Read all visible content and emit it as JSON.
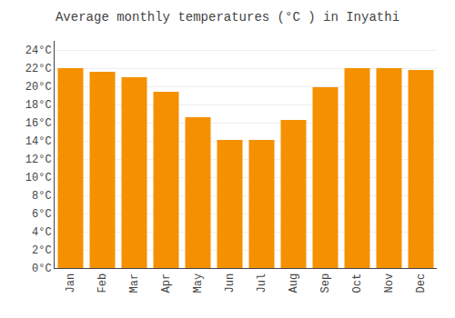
{
  "chart_data": {
    "type": "bar",
    "title": "Average monthly temperatures (°C ) in Inyathi",
    "categories": [
      "Jan",
      "Feb",
      "Mar",
      "Apr",
      "May",
      "Jun",
      "Jul",
      "Aug",
      "Sep",
      "Oct",
      "Nov",
      "Dec"
    ],
    "values": [
      22.0,
      21.6,
      21.0,
      19.4,
      16.6,
      14.1,
      14.1,
      16.3,
      19.9,
      22.0,
      22.0,
      21.8
    ],
    "color": "#F59000",
    "ylim": [
      0,
      25
    ],
    "yticks": [
      {
        "value": 0,
        "label": "0°C"
      },
      {
        "value": 2,
        "label": "2°C"
      },
      {
        "value": 4,
        "label": "4°C"
      },
      {
        "value": 6,
        "label": "6°C"
      },
      {
        "value": 8,
        "label": "8°C"
      },
      {
        "value": 10,
        "label": "10°C"
      },
      {
        "value": 12,
        "label": "12°C"
      },
      {
        "value": 14,
        "label": "14°C"
      },
      {
        "value": 16,
        "label": "16°C"
      },
      {
        "value": 18,
        "label": "18°C"
      },
      {
        "value": 20,
        "label": "20°C"
      },
      {
        "value": 22,
        "label": "22°C"
      },
      {
        "value": 24,
        "label": "24°C"
      }
    ],
    "grid": true
  }
}
